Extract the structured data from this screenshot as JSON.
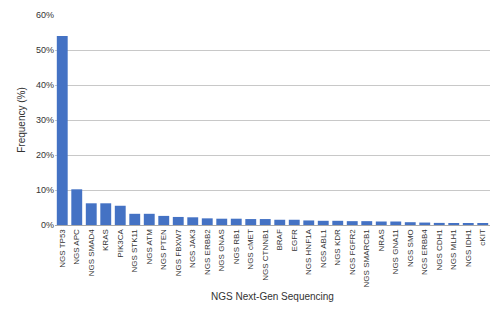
{
  "chart_data": {
    "type": "bar",
    "categories": [
      "NGS TP53",
      "NGS APC",
      "NGS SMAD4",
      "KRAS",
      "PIK3CA",
      "NGS STK11",
      "NGS ATM",
      "NGS PTEN",
      "NGS FBXW7",
      "NGS JAK3",
      "NGS ERBB2",
      "NGS GNAS",
      "NGS RB1",
      "NGS cMET",
      "NGS CTNNB1",
      "BRAF",
      "EGFR",
      "NGS HNF1A",
      "NGS ABL1",
      "NGS KDR",
      "NGS FGFR2",
      "NGS SMARCB1",
      "NRAS",
      "NGS GNA11",
      "NGS SMO",
      "NGS ERBB4",
      "NGS CDH1",
      "NGS MLH1",
      "NGS IDH1",
      "cKIT"
    ],
    "values": [
      54.0,
      10.2,
      6.2,
      6.2,
      5.5,
      3.2,
      3.2,
      2.6,
      2.3,
      2.2,
      1.9,
      1.8,
      1.8,
      1.7,
      1.7,
      1.5,
      1.5,
      1.3,
      1.2,
      1.2,
      1.1,
      1.1,
      1.0,
      1.0,
      0.8,
      0.7,
      0.6,
      0.5,
      0.5,
      0.5
    ],
    "color": "#4472C4",
    "xlabel": "NGS Next-Gen Sequencing",
    "ylabel": "Frequency (%)",
    "ylim": [
      0,
      60
    ],
    "yticks": [
      {
        "value": 0,
        "label": "0%"
      },
      {
        "value": 10,
        "label": "10%"
      },
      {
        "value": 20,
        "label": "20%"
      },
      {
        "value": 30,
        "label": "30%"
      },
      {
        "value": 40,
        "label": "40%"
      },
      {
        "value": 50,
        "label": "50%"
      },
      {
        "value": 60,
        "label": "60%"
      }
    ],
    "grid": true
  }
}
